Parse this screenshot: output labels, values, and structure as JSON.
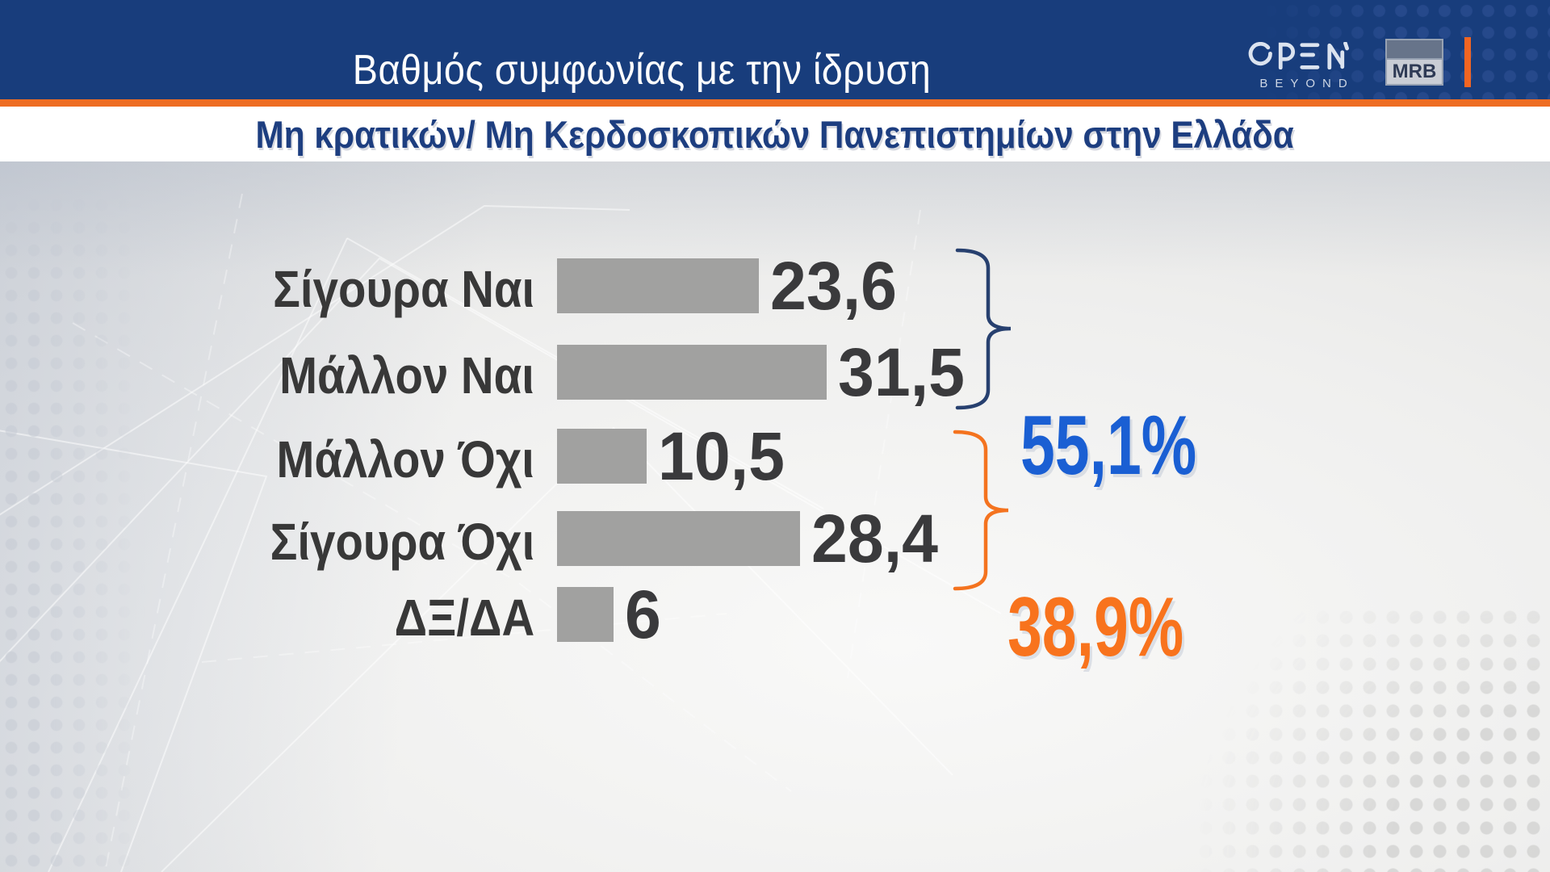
{
  "header": {
    "title": "Βαθμός συμφωνίας με την ίδρυση",
    "open_logo": {
      "text": "OPEN",
      "subtext": "BEYOND"
    },
    "mrb_logo": "MRB"
  },
  "subtitle": "Μη κρατικών/ Μη Κερδοσκοπικών Πανεπιστημίων στην Ελλάδα",
  "chart_data": {
    "type": "bar",
    "orientation": "horizontal",
    "title": "Βαθμός συμφωνίας με την ίδρυση Μη κρατικών/ Μη Κερδοσκοπικών Πανεπιστημίων στην Ελλάδα",
    "categories": [
      "Σίγουρα Ναι",
      "Μάλλον Ναι",
      "Μάλλον Όχι",
      "Σίγουρα Όχι",
      "ΔΞ/ΔΑ"
    ],
    "values": [
      23.6,
      31.5,
      10.5,
      28.4,
      6
    ],
    "value_labels": [
      "23,6",
      "31,5",
      "10,5",
      "28,4",
      "6"
    ],
    "bar_color": "#a1a1a0",
    "value_text_color": "#3a3a3c",
    "label_text_color": "#383838",
    "xlim": [
      0,
      35
    ],
    "grid": false,
    "groups": [
      {
        "label": "55,1%",
        "rows": [
          0,
          1
        ],
        "color": "#1a5fd3",
        "brace_color": "#27406f"
      },
      {
        "label": "38,9%",
        "rows": [
          2,
          3
        ],
        "color": "#f8731d",
        "brace_color": "#f4731f"
      }
    ]
  },
  "colors": {
    "header_bg": "#183d7c",
    "accent_orange": "#ee6d23",
    "subtitle_text": "#1d3e80",
    "background": "#e6e6e5"
  }
}
